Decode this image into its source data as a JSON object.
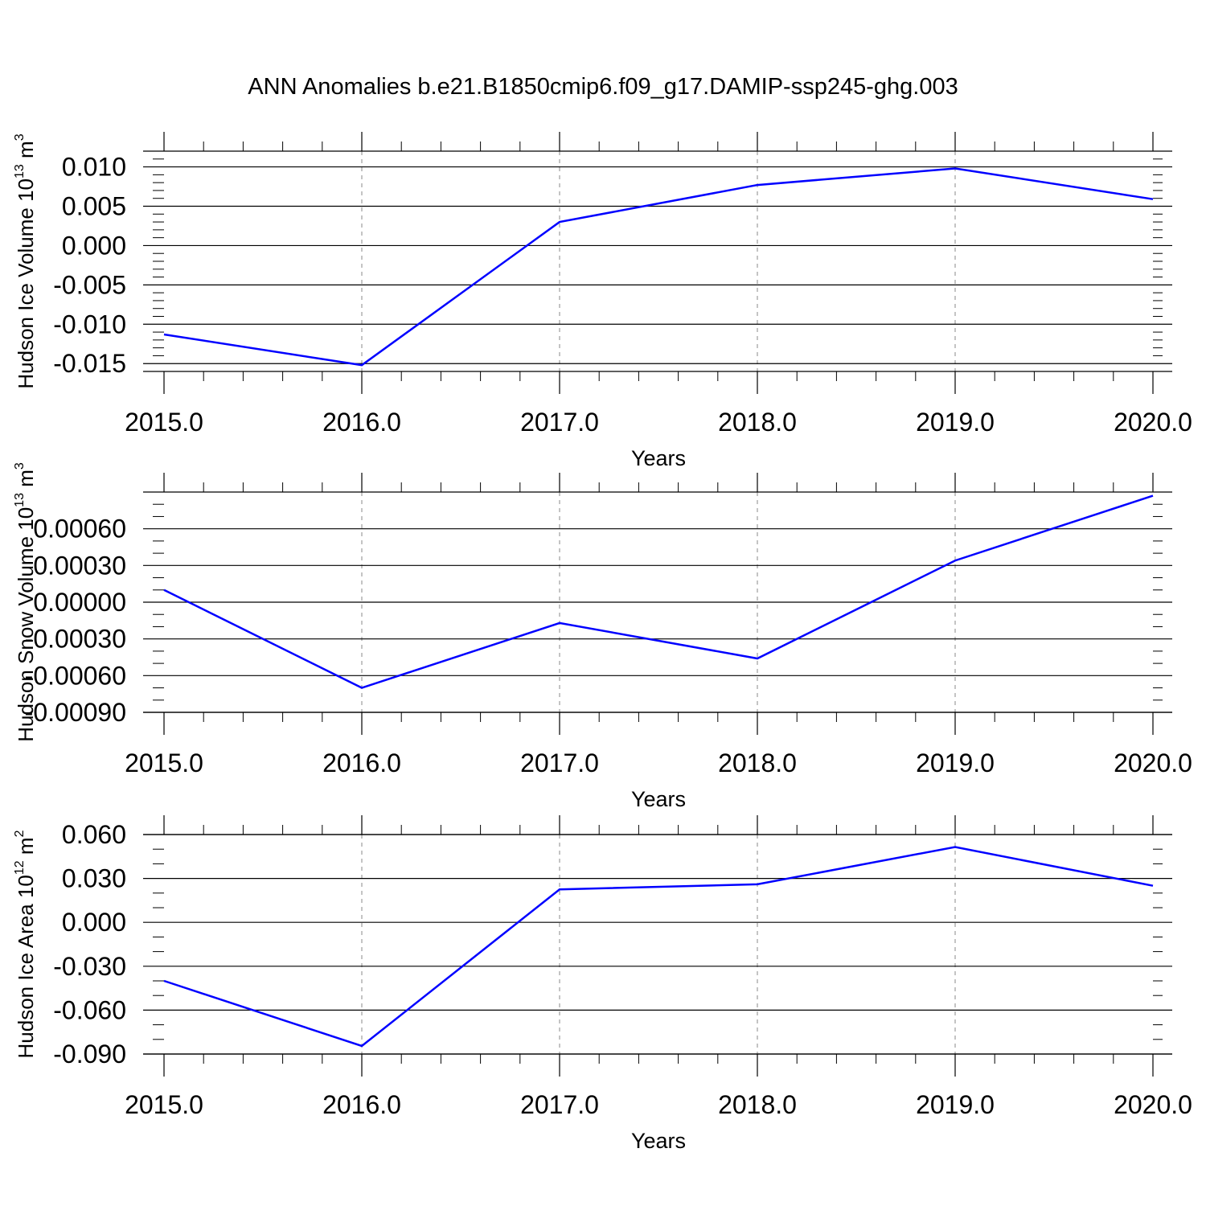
{
  "figure": {
    "title": "ANN Anomalies b.e21.B1850cmip6.f09_g17.DAMIP-ssp245-ghg.003"
  },
  "colors": {
    "line": "#0000ff",
    "axis": "#000000",
    "grid": "#888888",
    "background": "#ffffff"
  },
  "chart_data": [
    {
      "type": "line",
      "title": "",
      "xlabel": "Years",
      "ylabel_main": "Hudson Ice Volume 10",
      "ylabel_exp": "13",
      "ylabel_unit": " m",
      "ylabel_unit_exp": "3",
      "xlim": [
        2015,
        2020
      ],
      "ylim": [
        -0.016,
        0.012
      ],
      "x_ticks": [
        2015,
        2016,
        2017,
        2018,
        2019,
        2020
      ],
      "x_tick_labels": [
        "2015.0",
        "2016.0",
        "2017.0",
        "2018.0",
        "2019.0",
        "2020.0"
      ],
      "y_ticks": [
        -0.015,
        -0.01,
        -0.005,
        0.0,
        0.005,
        0.01
      ],
      "y_tick_labels": [
        "-0.015",
        "-0.010",
        "-0.005",
        "0.000",
        "0.005",
        "0.010"
      ],
      "y_minor_step": 0.001,
      "grid": "vertical-dashed",
      "series": [
        {
          "x": [
            2015,
            2016,
            2017,
            2018,
            2019,
            2020
          ],
          "y": [
            -0.0113,
            -0.0152,
            0.003,
            0.0077,
            0.0098,
            0.0059
          ]
        }
      ]
    },
    {
      "type": "line",
      "title": "",
      "xlabel": "Years",
      "ylabel_main": "Hudson Snow Volume 10",
      "ylabel_exp": "13",
      "ylabel_unit": " m",
      "ylabel_unit_exp": "3",
      "xlim": [
        2015,
        2020
      ],
      "ylim": [
        -0.0009,
        0.0009
      ],
      "x_ticks": [
        2015,
        2016,
        2017,
        2018,
        2019,
        2020
      ],
      "x_tick_labels": [
        "2015.0",
        "2016.0",
        "2017.0",
        "2018.0",
        "2019.0",
        "2020.0"
      ],
      "y_ticks": [
        -0.0009,
        -0.0006,
        -0.0003,
        0.0,
        0.0003,
        0.0006
      ],
      "y_tick_labels": [
        "-0.00090",
        "-0.00060",
        "-0.00030",
        "0.00000",
        "0.00030",
        "0.00060"
      ],
      "y_minor_step": 0.0001,
      "grid": "vertical-dashed",
      "series": [
        {
          "x": [
            2015,
            2016,
            2017,
            2018,
            2019,
            2020
          ],
          "y": [
            0.0001,
            -0.0007,
            -0.00017,
            -0.00046,
            0.00034,
            0.00087
          ]
        }
      ]
    },
    {
      "type": "line",
      "title": "",
      "xlabel": "Years",
      "ylabel_main": "Hudson Ice Area 10",
      "ylabel_exp": "12",
      "ylabel_unit": " m",
      "ylabel_unit_exp": "2",
      "xlim": [
        2015,
        2020
      ],
      "ylim": [
        -0.09,
        0.06
      ],
      "x_ticks": [
        2015,
        2016,
        2017,
        2018,
        2019,
        2020
      ],
      "x_tick_labels": [
        "2015.0",
        "2016.0",
        "2017.0",
        "2018.0",
        "2019.0",
        "2020.0"
      ],
      "y_ticks": [
        -0.09,
        -0.06,
        -0.03,
        0.0,
        0.03,
        0.06
      ],
      "y_tick_labels": [
        "-0.090",
        "-0.060",
        "-0.030",
        "0.000",
        "0.030",
        "0.060"
      ],
      "y_minor_step": 0.01,
      "grid": "vertical-dashed",
      "series": [
        {
          "x": [
            2015,
            2016,
            2017,
            2018,
            2019,
            2020
          ],
          "y": [
            -0.04,
            -0.0845,
            0.0225,
            0.026,
            0.0515,
            0.025
          ]
        }
      ]
    }
  ]
}
